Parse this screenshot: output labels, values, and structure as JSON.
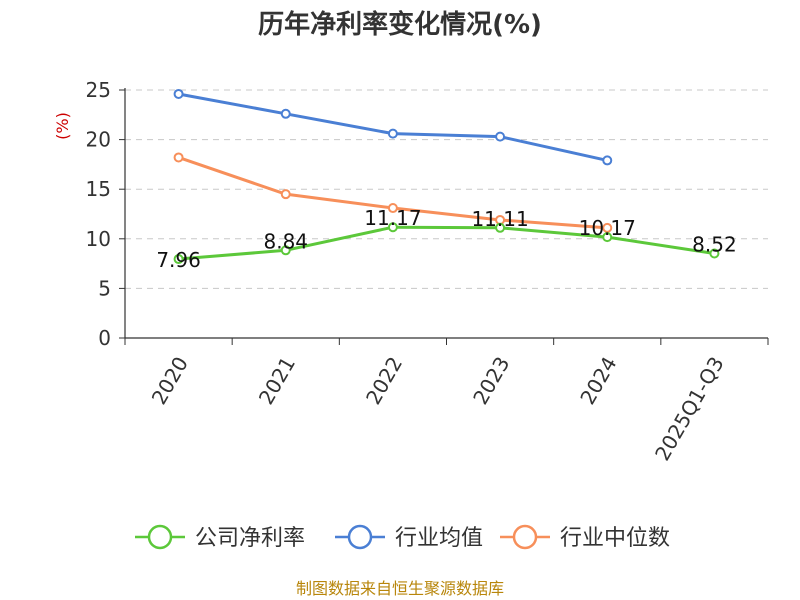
{
  "chart_data": {
    "type": "line",
    "title": "历年净利率变化情况(%)",
    "ylabel": "(%)",
    "xlabel": "",
    "categories": [
      "2020",
      "2021",
      "2022",
      "2023",
      "2024",
      "2025Q1-Q3"
    ],
    "ylim": [
      0,
      25
    ],
    "yticks": [
      0,
      5,
      10,
      15,
      20,
      25
    ],
    "grid": true,
    "legend": "bottom",
    "series": [
      {
        "name": "公司净利率",
        "color": "#5cc83a",
        "values": [
          7.96,
          8.84,
          11.17,
          11.11,
          10.17,
          8.52
        ],
        "labels": [
          "7.96",
          "8.84",
          "11.17",
          "11.11",
          "10.17",
          "8.52"
        ]
      },
      {
        "name": "行业均值",
        "color": "#4a7fd4",
        "values": [
          24.6,
          22.6,
          20.6,
          20.3,
          17.9,
          null
        ]
      },
      {
        "name": "行业中位数",
        "color": "#f78f5a",
        "values": [
          18.2,
          14.5,
          13.1,
          11.9,
          11.1,
          null
        ]
      }
    ],
    "source": "制图数据来自恒生聚源数据库"
  }
}
